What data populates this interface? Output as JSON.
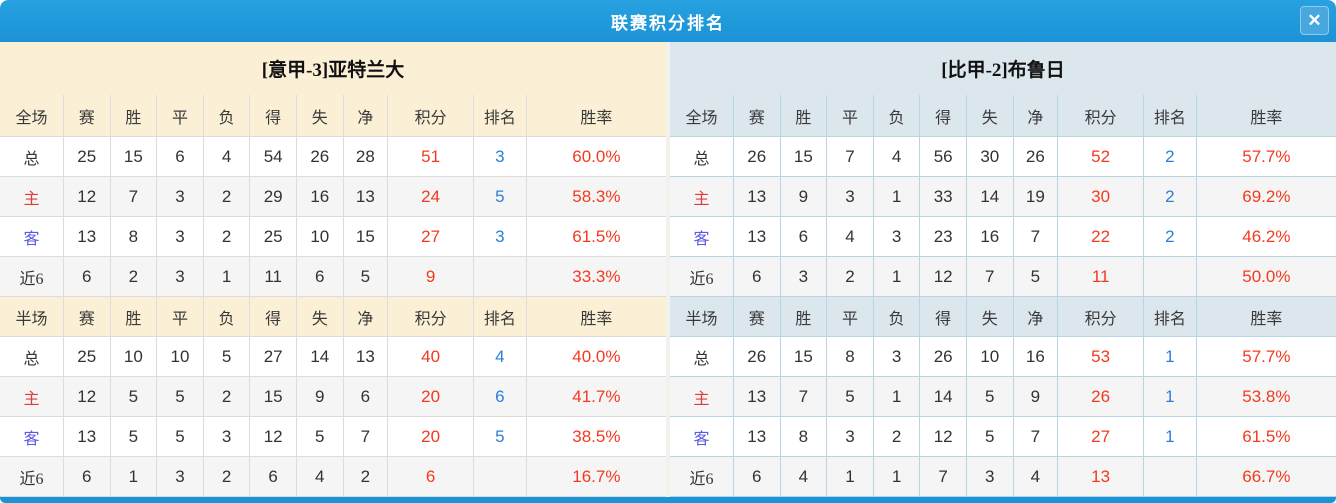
{
  "window": {
    "title": "联赛积分排名",
    "close_icon": "✕"
  },
  "colors": {
    "titlebar_blue": "#1e97d8",
    "points_red": "#f4381e",
    "rank_blue": "#2b7fd9",
    "home_label_red": "#e03a3a",
    "away_label_blue": "#5a5ae0",
    "left_header_cream": "#fbf0d5",
    "right_header_bluegray": "#dce6ed"
  },
  "columns": {
    "full": [
      "全场",
      "赛",
      "胜",
      "平",
      "负",
      "得",
      "失",
      "净",
      "积分",
      "排名",
      "胜率"
    ],
    "half": [
      "半场",
      "赛",
      "胜",
      "平",
      "负",
      "得",
      "失",
      "净",
      "积分",
      "排名",
      "胜率"
    ]
  },
  "teams": [
    {
      "name": "[意甲-3]亚特兰大",
      "full": {
        "rows": [
          {
            "label": "总",
            "stats": [
              25,
              15,
              6,
              4,
              54,
              26,
              28
            ],
            "points": "51",
            "rank": "3",
            "rate": "60.0%"
          },
          {
            "label": "主",
            "stats": [
              12,
              7,
              3,
              2,
              29,
              16,
              13
            ],
            "points": "24",
            "rank": "5",
            "rate": "58.3%"
          },
          {
            "label": "客",
            "stats": [
              13,
              8,
              3,
              2,
              25,
              10,
              15
            ],
            "points": "27",
            "rank": "3",
            "rate": "61.5%"
          },
          {
            "label": "近6",
            "stats": [
              6,
              2,
              3,
              1,
              11,
              6,
              5
            ],
            "points": "9",
            "rank": "",
            "rate": "33.3%"
          }
        ]
      },
      "half": {
        "rows": [
          {
            "label": "总",
            "stats": [
              25,
              10,
              10,
              5,
              27,
              14,
              13
            ],
            "points": "40",
            "rank": "4",
            "rate": "40.0%"
          },
          {
            "label": "主",
            "stats": [
              12,
              5,
              5,
              2,
              15,
              9,
              6
            ],
            "points": "20",
            "rank": "6",
            "rate": "41.7%"
          },
          {
            "label": "客",
            "stats": [
              13,
              5,
              5,
              3,
              12,
              5,
              7
            ],
            "points": "20",
            "rank": "5",
            "rate": "38.5%"
          },
          {
            "label": "近6",
            "stats": [
              6,
              1,
              3,
              2,
              6,
              4,
              2
            ],
            "points": "6",
            "rank": "",
            "rate": "16.7%"
          }
        ]
      }
    },
    {
      "name": "[比甲-2]布鲁日",
      "full": {
        "rows": [
          {
            "label": "总",
            "stats": [
              26,
              15,
              7,
              4,
              56,
              30,
              26
            ],
            "points": "52",
            "rank": "2",
            "rate": "57.7%"
          },
          {
            "label": "主",
            "stats": [
              13,
              9,
              3,
              1,
              33,
              14,
              19
            ],
            "points": "30",
            "rank": "2",
            "rate": "69.2%"
          },
          {
            "label": "客",
            "stats": [
              13,
              6,
              4,
              3,
              23,
              16,
              7
            ],
            "points": "22",
            "rank": "2",
            "rate": "46.2%"
          },
          {
            "label": "近6",
            "stats": [
              6,
              3,
              2,
              1,
              12,
              7,
              5
            ],
            "points": "11",
            "rank": "",
            "rate": "50.0%"
          }
        ]
      },
      "half": {
        "rows": [
          {
            "label": "总",
            "stats": [
              26,
              15,
              8,
              3,
              26,
              10,
              16
            ],
            "points": "53",
            "rank": "1",
            "rate": "57.7%"
          },
          {
            "label": "主",
            "stats": [
              13,
              7,
              5,
              1,
              14,
              5,
              9
            ],
            "points": "26",
            "rank": "1",
            "rate": "53.8%"
          },
          {
            "label": "客",
            "stats": [
              13,
              8,
              3,
              2,
              12,
              5,
              7
            ],
            "points": "27",
            "rank": "1",
            "rate": "61.5%"
          },
          {
            "label": "近6",
            "stats": [
              6,
              4,
              1,
              1,
              7,
              3,
              4
            ],
            "points": "13",
            "rank": "",
            "rate": "66.7%"
          }
        ]
      }
    }
  ]
}
